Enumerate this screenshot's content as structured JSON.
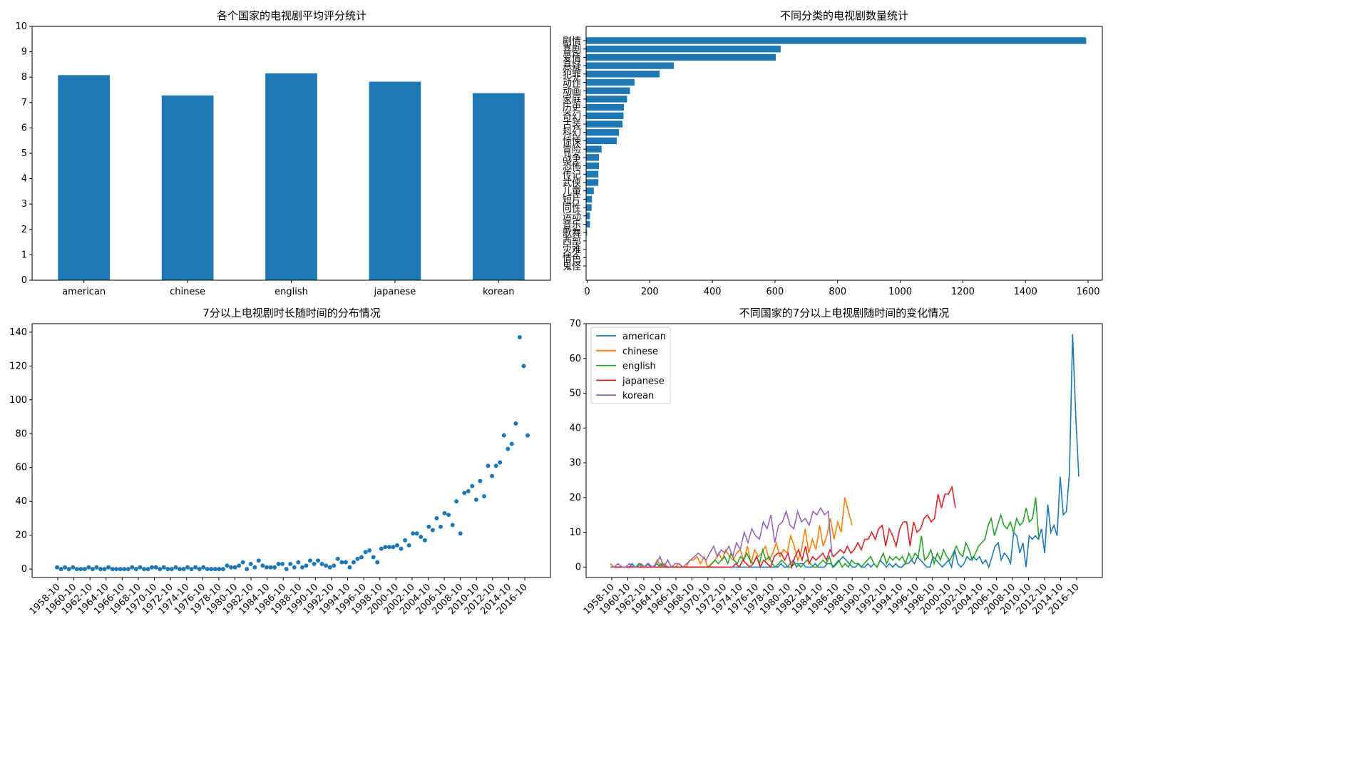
{
  "colors": {
    "blue": "#1f77b4",
    "orange": "#ff7f0e",
    "green": "#2ca02c",
    "red": "#d62728",
    "purple": "#9467bd"
  },
  "chart_data": [
    {
      "type": "bar",
      "title": "各个国家的电视剧平均评分统计",
      "categories": [
        "american",
        "chinese",
        "english",
        "japanese",
        "korean"
      ],
      "values": [
        8.08,
        7.28,
        8.15,
        7.82,
        7.37
      ],
      "ylim": [
        0,
        10
      ],
      "yticks": [
        0,
        1,
        2,
        3,
        4,
        5,
        6,
        7,
        8,
        9,
        10
      ],
      "xlabel": "",
      "ylabel": "",
      "grid": false
    },
    {
      "type": "bar",
      "orientation": "horizontal",
      "title": "不同分类的电视剧数量统计",
      "categories": [
        "剧情",
        "喜剧",
        "爱情",
        "悬疑",
        "犯罪",
        "动作",
        "动画",
        "家庭",
        "历史",
        "奇幻",
        "古装",
        "科幻",
        "惊悚",
        "冒险",
        "战争",
        "恐怖",
        "传记",
        "武侠",
        "儿童",
        "短片",
        "同性",
        "运动",
        "音乐",
        "歌舞",
        "西部",
        "灾难",
        "情色",
        "鬼怪"
      ],
      "values": [
        1550,
        603,
        588,
        272,
        228,
        150,
        136,
        127,
        117,
        116,
        113,
        102,
        95,
        48,
        40,
        40,
        38,
        38,
        24,
        18,
        17,
        12,
        12,
        3,
        1,
        1,
        1,
        1
      ],
      "xlim": [
        0,
        1600
      ],
      "xticks": [
        0,
        200,
        400,
        600,
        800,
        1000,
        1200,
        1400,
        1600
      ],
      "grid": false
    },
    {
      "type": "scatter",
      "title": "7分以上电视剧时长随时间的分布情况",
      "x_start": "1958-10",
      "x_tick_labels": [
        "1958-10",
        "1960-10",
        "1962-10",
        "1964-10",
        "1966-10",
        "1968-10",
        "1970-10",
        "1972-10",
        "1974-10",
        "1976-10",
        "1978-10",
        "1980-10",
        "1982-10",
        "1984-10",
        "1986-10",
        "1988-10",
        "1990-10",
        "1992-10",
        "1994-10",
        "1996-10",
        "1998-10",
        "2000-10",
        "2002-10",
        "2004-10",
        "2006-10",
        "2008-10",
        "2010-10",
        "2012-10",
        "2014-10",
        "2016-10"
      ],
      "values": [
        1,
        0,
        1,
        0,
        1,
        0,
        0,
        0,
        1,
        0,
        1,
        0,
        0,
        1,
        0,
        0,
        0,
        0,
        0,
        1,
        0,
        1,
        0,
        0,
        1,
        1,
        0,
        1,
        0,
        0,
        1,
        0,
        0,
        1,
        0,
        1,
        0,
        1,
        0,
        0,
        0,
        0,
        0,
        2,
        1,
        1,
        2,
        4,
        0,
        3,
        1,
        5,
        2,
        1,
        1,
        1,
        3,
        3,
        0,
        3,
        1,
        4,
        1,
        2,
        5,
        3,
        5,
        3,
        2,
        1,
        2,
        6,
        4,
        4,
        1,
        4,
        6,
        7,
        10,
        11,
        7,
        4,
        12,
        13,
        13,
        13,
        14,
        12,
        17,
        14,
        21,
        21,
        19,
        17,
        25,
        23,
        30,
        25,
        33,
        32,
        26,
        40,
        21,
        45,
        46,
        49,
        41,
        52,
        43,
        61,
        55,
        61,
        63,
        79,
        71,
        74,
        86,
        137,
        120,
        79
      ],
      "ylim": [
        -5,
        145
      ],
      "yticks": [
        0,
        20,
        40,
        60,
        80,
        100,
        120,
        140
      ],
      "grid": false
    },
    {
      "type": "line",
      "title": "不同国家的7分以上电视剧随时间的变化情况",
      "x_start": "1958-10",
      "x_tick_labels": [
        "1958-10",
        "1960-10",
        "1962-10",
        "1964-10",
        "1966-10",
        "1968-10",
        "1970-10",
        "1972-10",
        "1974-10",
        "1976-10",
        "1978-10",
        "1980-10",
        "1982-10",
        "1984-10",
        "1986-10",
        "1988-10",
        "1990-10",
        "1992-10",
        "1994-10",
        "1996-10",
        "1998-10",
        "2000-10",
        "2002-10",
        "2004-10",
        "2006-10",
        "2008-10",
        "2010-10",
        "2012-10",
        "2014-10",
        "2016-10"
      ],
      "ylim": [
        -3,
        70
      ],
      "yticks": [
        0,
        10,
        20,
        30,
        40,
        50,
        60,
        70
      ],
      "legend_position": "top-left",
      "series": [
        {
          "name": "american",
          "color": "#1f77b4",
          "values": [
            1,
            0,
            0,
            0,
            0,
            0,
            0,
            1,
            0,
            0,
            0,
            0,
            1,
            0,
            0,
            1,
            0,
            1,
            0,
            0,
            0,
            0,
            0,
            0,
            0,
            0,
            0,
            0,
            0,
            0,
            0,
            0,
            0,
            0,
            0,
            0,
            0,
            0,
            0,
            0,
            0,
            0,
            0,
            0,
            0,
            0,
            0,
            0,
            0,
            0,
            0,
            0,
            0,
            0,
            0,
            1,
            0,
            0,
            1,
            2,
            0,
            1,
            1,
            0,
            0,
            0,
            1,
            0,
            0,
            0,
            1,
            1,
            0,
            1,
            2,
            3,
            2,
            1,
            0,
            0,
            1,
            0,
            0,
            1,
            0,
            1,
            0,
            2,
            1,
            0,
            1,
            0,
            1,
            0,
            0,
            1,
            1,
            2,
            1,
            3,
            2,
            1,
            0,
            0,
            3,
            2,
            1,
            0,
            1,
            2,
            0,
            5,
            1,
            0,
            1,
            3,
            2,
            3,
            2,
            3,
            1,
            2,
            0,
            3,
            6,
            7,
            2,
            4,
            3,
            1,
            10,
            9,
            4,
            7,
            0,
            9,
            8,
            9,
            8,
            11,
            4,
            18,
            10,
            12,
            9,
            26,
            15,
            16,
            27,
            67,
            44,
            26
          ]
        },
        {
          "name": "chinese",
          "color": "#ff7f0e",
          "values": [
            1,
            0,
            0,
            0,
            0,
            0,
            0,
            0,
            1,
            0,
            0,
            0,
            0,
            2,
            0,
            1,
            0,
            0,
            0,
            1,
            0,
            0,
            2,
            2,
            3,
            1,
            3,
            0,
            1,
            2,
            4,
            2,
            5,
            3,
            2,
            4,
            5,
            2,
            6,
            1,
            5,
            3,
            4,
            6,
            2,
            4,
            7,
            3,
            5,
            4,
            9,
            6,
            2,
            5,
            11,
            4,
            8,
            5,
            12,
            6,
            9,
            14,
            8,
            13,
            10,
            20,
            16,
            12
          ]
        },
        {
          "name": "english",
          "color": "#2ca02c",
          "values": [
            0,
            0,
            0,
            0,
            0,
            0,
            0,
            0,
            0,
            1,
            0,
            0,
            1,
            0,
            0,
            0,
            1,
            0,
            0,
            0,
            0,
            0,
            0,
            0,
            0,
            0,
            0,
            0,
            0,
            0,
            0,
            0,
            1,
            2,
            1,
            2,
            3,
            1,
            4,
            2,
            1,
            3,
            2,
            4,
            2,
            1,
            3,
            1,
            5,
            2,
            3,
            1,
            0,
            1,
            2,
            1,
            0,
            0,
            1,
            1,
            0,
            1,
            2,
            1,
            0,
            0,
            1,
            2,
            1,
            3,
            0,
            1,
            2,
            0,
            1,
            0,
            2,
            1,
            1,
            0,
            1,
            2,
            3,
            1,
            0,
            2,
            4,
            1,
            3,
            2,
            3,
            2,
            3,
            1,
            4,
            2,
            4,
            3,
            9,
            2,
            3,
            5,
            1,
            4,
            2,
            5,
            3,
            2,
            4,
            6,
            4,
            3,
            7,
            5,
            2,
            4,
            6,
            7,
            8,
            12,
            14,
            9,
            12,
            15,
            12,
            11,
            13,
            10,
            14,
            12,
            13,
            17,
            13,
            14,
            20,
            8
          ]
        },
        {
          "name": "japanese",
          "color": "#d62728",
          "values": [
            0,
            0,
            0,
            0,
            0,
            0,
            0,
            0,
            0,
            0,
            0,
            0,
            0,
            0,
            0,
            0,
            0,
            0,
            0,
            0,
            0,
            0,
            0,
            0,
            0,
            0,
            0,
            0,
            0,
            0,
            0,
            0,
            0,
            0,
            0,
            0,
            1,
            0,
            2,
            1,
            0,
            1,
            3,
            0,
            2,
            1,
            0,
            3,
            4,
            4,
            2,
            4,
            0,
            3,
            5,
            2,
            6,
            1,
            3,
            2,
            3,
            4,
            2,
            5,
            3,
            4,
            5,
            4,
            6,
            4,
            5,
            7,
            5,
            8,
            8,
            10,
            8,
            11,
            12,
            6,
            11,
            9,
            6,
            11,
            13,
            13,
            6,
            13,
            10,
            11,
            14,
            15,
            13,
            14,
            21,
            17,
            21,
            21,
            23,
            17
          ]
        },
        {
          "name": "korean",
          "color": "#9467bd",
          "values": [
            0,
            0,
            1,
            0,
            0,
            1,
            0,
            0,
            1,
            0,
            1,
            0,
            1,
            3,
            0,
            2,
            0,
            1,
            1,
            0,
            1,
            2,
            3,
            4,
            3,
            2,
            4,
            6,
            3,
            5,
            4,
            6,
            3,
            7,
            5,
            10,
            7,
            11,
            9,
            8,
            13,
            11,
            15,
            7,
            12,
            13,
            16,
            12,
            11,
            16,
            13,
            14,
            12,
            16,
            15,
            17,
            15,
            16,
            3
          ]
        }
      ]
    }
  ]
}
